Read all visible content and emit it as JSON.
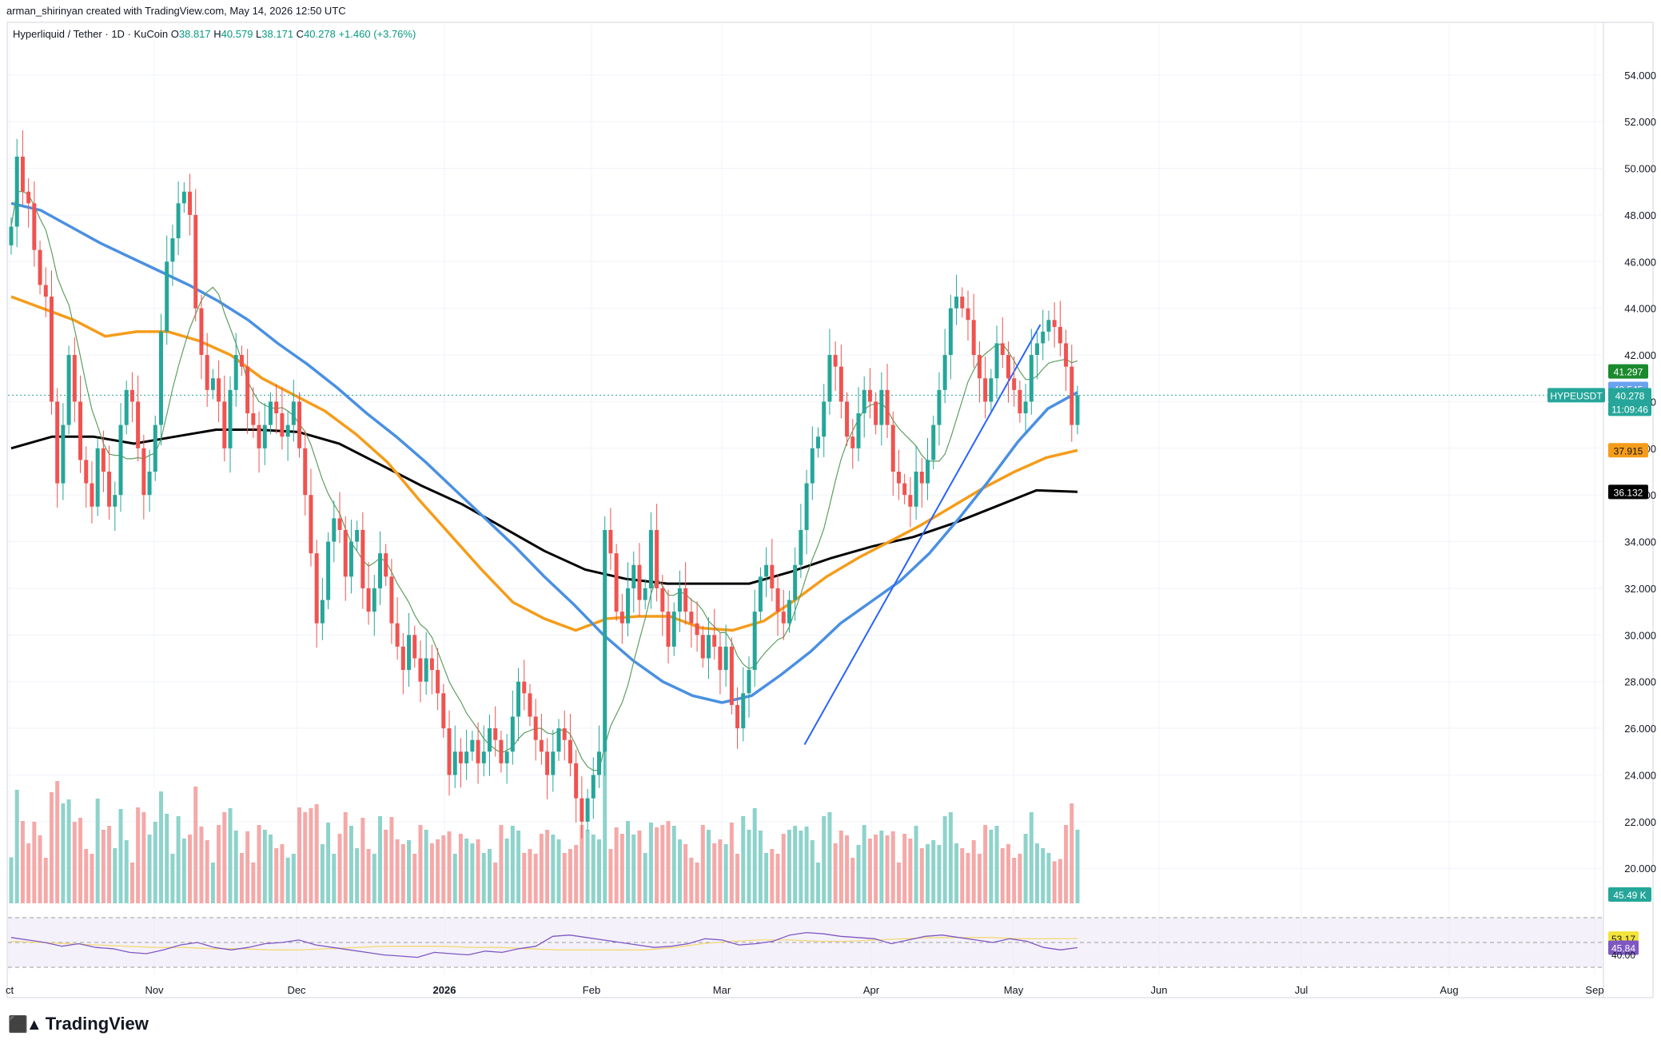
{
  "header": {
    "attribution": "arman_shirinyan created with TradingView.com, May 14, 2026 12:50 UTC",
    "symbol": "Hyperliquid / Tether · 1D · KuCoin",
    "open_label": "O",
    "open": "38.817",
    "high_label": "H",
    "high": "40.579",
    "low_label": "L",
    "low": "38.171",
    "close_label": "C",
    "close": "40.278",
    "change": "+1.460 (+3.76%)"
  },
  "brand": {
    "name": "TradingView",
    "logo_icon": "tradingview-logo-icon"
  },
  "colors": {
    "up": "#26a69a",
    "down": "#ef5350",
    "vol_up": "#8ed3cb",
    "vol_down": "#f4a9a8",
    "ma_fast": "#5f9f60",
    "ma_blue": "#4a90e2",
    "ma_orange": "#f59c1a",
    "ma_black": "#000000",
    "trendline": "#2962ff",
    "rsi": "#7e57c2",
    "rsi_ma": "#f3d97a"
  },
  "chart_data": {
    "type": "candlestick",
    "price_axis": [
      "54.000",
      "52.000",
      "50.000",
      "48.000",
      "46.000",
      "44.000",
      "42.000",
      "40.000",
      "38.000",
      "36.000",
      "34.000",
      "32.000",
      "30.000",
      "28.000",
      "26.000",
      "24.000",
      "22.000",
      "20.000"
    ],
    "ylim": [
      18.5,
      55.5
    ],
    "time_axis": [
      "ct",
      "Nov",
      "Dec",
      "2026",
      "Feb",
      "Mar",
      "Apr",
      "May",
      "Jun",
      "Jul",
      "Aug",
      "Sep"
    ],
    "price_labels": {
      "ma_fast": "41.297",
      "ma_blue": "40.545",
      "symbol_tag": "HYPEUSDT",
      "last": "40.278",
      "countdown": "11:09:46",
      "ma_orange": "37.915",
      "ma_black": "36.132",
      "volume": "45.49 K",
      "rsi_ma": "53.17",
      "rsi": "45.84",
      "rsi_level": "40.00"
    },
    "closes": [
      47.5,
      50.5,
      49,
      48.5,
      46.5,
      45,
      44.5,
      40,
      36.5,
      39,
      42,
      40,
      37.5,
      36.5,
      35.5,
      38,
      37,
      35.5,
      36,
      39,
      40.5,
      40,
      38,
      36,
      37,
      39,
      43,
      46,
      47,
      48.5,
      49,
      48,
      44,
      42,
      40.5,
      41,
      40,
      38,
      40.5,
      42,
      41.5,
      39.5,
      39,
      38,
      39,
      40,
      39.5,
      38.5,
      39,
      40,
      38,
      36,
      33.5,
      30.5,
      31.5,
      34,
      35,
      34.5,
      32.5,
      34,
      34.5,
      32,
      31,
      32,
      33.5,
      32.5,
      30.5,
      29.5,
      28.5,
      30,
      29,
      28,
      29,
      28.5,
      27.5,
      26,
      24,
      25,
      24.5,
      25,
      25.5,
      24.5,
      25,
      26,
      25.5,
      24.5,
      25,
      26.5,
      28,
      27.5,
      26.5,
      25.5,
      25,
      24,
      25,
      26,
      25.5,
      24.5,
      23,
      22,
      23,
      24,
      25,
      34.5,
      33.5,
      31,
      30.5,
      32,
      33,
      31.5,
      32,
      34.5,
      32,
      31,
      29.5,
      31,
      32,
      31,
      30.5,
      30,
      29,
      30,
      29.5,
      28.5,
      29.5,
      27,
      26,
      27.5,
      28.5,
      31,
      32.5,
      33,
      32,
      31,
      30.5,
      31.5,
      33,
      34.5,
      36.5,
      38,
      38.5,
      40,
      42,
      41.5,
      40,
      38.5,
      38,
      39.5,
      40.5,
      40,
      39,
      40.5,
      39,
      37,
      36.5,
      36,
      35.5,
      37,
      36.5,
      37.5,
      39,
      40.5,
      42,
      44,
      44.5,
      44,
      43.5,
      42,
      41,
      40,
      41,
      42.5,
      42,
      41,
      40.5,
      39.5,
      40,
      42,
      42.5,
      43,
      43.5,
      43.2,
      42.5,
      41.5,
      39,
      40.278
    ],
    "ma_blue_series": [
      48.5,
      48.2,
      47.5,
      46.8,
      46.2,
      45.6,
      45,
      44.3,
      43.5,
      42.5,
      41.6,
      40.6,
      39.5,
      38.5,
      37.4,
      36.2,
      35,
      33.8,
      32.5,
      31.3,
      30,
      28.9,
      28,
      27.4,
      27.1,
      27.4,
      28.3,
      29.3,
      30.5,
      31.4,
      32.3,
      33.5,
      35,
      36.6,
      38.3,
      39.7,
      40.4
    ],
    "ma_orange_series": [
      44.5,
      44,
      43.5,
      42.8,
      43,
      43,
      42.6,
      42,
      41,
      40.3,
      39.6,
      38.6,
      37.4,
      35.8,
      34.3,
      32.8,
      31.4,
      30.7,
      30.2,
      30.7,
      30.8,
      30.8,
      30.3,
      30.2,
      30.6,
      31.5,
      32.5,
      33.3,
      34,
      34.7,
      35.5,
      36.3,
      37,
      37.6,
      37.915
    ],
    "ma_black_series": [
      38,
      38.5,
      38.5,
      38.2,
      38.5,
      38.8,
      38.8,
      38.7,
      38.2,
      37.3,
      36.4,
      35.6,
      34.6,
      33.6,
      32.8,
      32.4,
      32.2,
      32.2,
      32.2,
      32.7,
      33.3,
      33.8,
      34.2,
      34.8,
      35.5,
      36.2,
      36.132
    ],
    "rsi_series": [
      54,
      52,
      50,
      47,
      49,
      46,
      45,
      42,
      41,
      44,
      48,
      50,
      46,
      44,
      46,
      49,
      50,
      52,
      48,
      46,
      44,
      42,
      40,
      39,
      38,
      42,
      41,
      40,
      43,
      42,
      45,
      47,
      55,
      56,
      54,
      52,
      50,
      48,
      46,
      47,
      49,
      53,
      52,
      48,
      49,
      51,
      56,
      58,
      57,
      55,
      54,
      53,
      49,
      52,
      55,
      56,
      54,
      52,
      50,
      53,
      51,
      46,
      44,
      45.84
    ],
    "rsi_ma_series": [
      51,
      50,
      49,
      48,
      47,
      46,
      46,
      45,
      45,
      44,
      44,
      45,
      46,
      47,
      47,
      47,
      46,
      46,
      45,
      44,
      44,
      44,
      44,
      46,
      49,
      51,
      52,
      52,
      51,
      51,
      52,
      53,
      54,
      54,
      54,
      53,
      53,
      53.17
    ]
  }
}
